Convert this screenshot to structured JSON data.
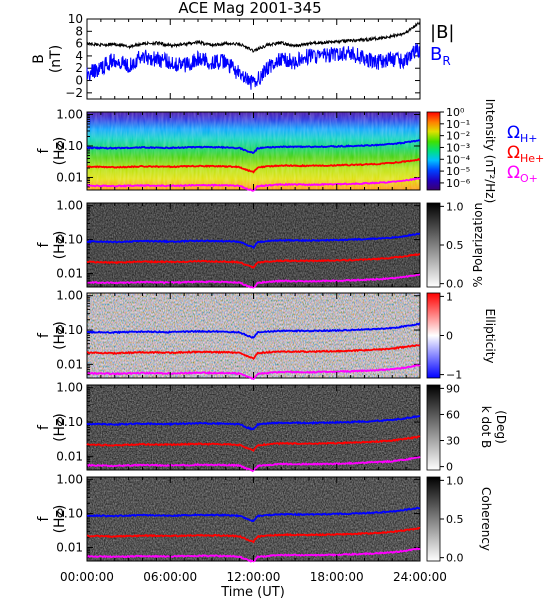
{
  "title": "ACE Mag 2001-345",
  "x_axis": {
    "label": "Time (UT)",
    "tick_labels": [
      "00:00:00",
      "06:00:00",
      "12:00:00",
      "18:00:00",
      "24:00:00"
    ],
    "tick_hours": [
      0,
      6,
      12,
      18,
      24
    ]
  },
  "chart_data": [
    {
      "type": "line",
      "panel": "magnetic-field",
      "xlabel": "",
      "ylabel": "B",
      "yunit": "(nT)",
      "ylim": [
        -3,
        10
      ],
      "ytick_labels": [
        "−2",
        "0",
        "2",
        "4",
        "6",
        "8",
        "10"
      ],
      "ytick_values": [
        -2,
        0,
        2,
        4,
        6,
        8,
        10
      ],
      "series": [
        {
          "name": "|B|",
          "color": "#000000",
          "x": [
            0,
            1,
            2,
            3,
            4,
            5,
            6,
            7,
            8,
            9,
            10,
            11,
            11.5,
            12,
            13,
            14,
            15,
            16,
            17,
            18,
            19,
            20,
            21,
            22,
            23,
            23.5,
            24
          ],
          "values": [
            6.0,
            5.8,
            5.9,
            5.5,
            6.0,
            6.1,
            5.7,
            5.9,
            6.2,
            5.8,
            6.0,
            5.9,
            5.4,
            4.8,
            5.8,
            6.1,
            5.6,
            6.0,
            6.2,
            6.3,
            6.5,
            6.6,
            6.9,
            7.2,
            7.8,
            8.6,
            9.5
          ]
        },
        {
          "name": "B_R",
          "color": "#0000ff",
          "x": [
            0,
            1,
            2,
            3,
            4,
            5,
            6,
            7,
            8,
            9,
            10,
            11,
            11.5,
            12,
            13,
            14,
            15,
            16,
            17,
            18,
            19,
            20,
            21,
            22,
            23,
            23.5,
            24
          ],
          "values": [
            1.0,
            2.0,
            3.5,
            2.5,
            4.0,
            3.5,
            3.0,
            2.5,
            3.5,
            3.0,
            3.0,
            1.0,
            0.0,
            -0.5,
            2.0,
            3.5,
            3.0,
            4.0,
            4.0,
            4.2,
            4.5,
            3.5,
            3.0,
            3.5,
            3.0,
            5.0,
            4.5
          ]
        }
      ]
    },
    {
      "type": "heatmap",
      "panel": "power-spectrum",
      "ylabel": "f",
      "yunit": "(Hz)",
      "ytick_labels": [
        "1.00",
        "0.10",
        "0.01"
      ],
      "ytick_values": [
        1.0,
        0.1,
        0.01
      ],
      "yscale": "log",
      "ylim": [
        0.004,
        1.2
      ],
      "colorbar": {
        "label": "Intensity (nT²/Hz)",
        "scale": "log",
        "tick_labels": [
          "10⁰",
          "10⁻¹",
          "10⁻²",
          "10⁻³",
          "10⁻⁴",
          "10⁻⁵",
          "10⁻⁶"
        ],
        "tick_values": [
          0,
          -1,
          -2,
          -3,
          -4,
          -5,
          -6
        ],
        "colormap": "rainbow"
      },
      "legend": [
        "Ω_H+",
        "Ω_He+",
        "Ω_O+"
      ]
    },
    {
      "type": "heatmap",
      "panel": "polarization",
      "ylabel": "f",
      "yunit": "(Hz)",
      "ytick_labels": [
        "1.00",
        "0.10",
        "0.01"
      ],
      "yscale": "log",
      "colorbar": {
        "label": "% Polarization",
        "tick_labels": [
          "1.0",
          "0.5",
          "0.0"
        ],
        "tick_values": [
          1.0,
          0.5,
          0.0
        ],
        "colormap": "gray"
      }
    },
    {
      "type": "heatmap",
      "panel": "ellipticity",
      "ylabel": "f",
      "yunit": "(Hz)",
      "ytick_labels": [
        "1.00",
        "0.10",
        "0.01"
      ],
      "yscale": "log",
      "colorbar": {
        "label": "Ellipticity",
        "tick_labels": [
          "1",
          "0",
          "−1"
        ],
        "tick_values": [
          1,
          0,
          -1
        ],
        "colormap": "blue-white-red"
      }
    },
    {
      "type": "heatmap",
      "panel": "wave-normal-angle",
      "ylabel": "f",
      "yunit": "(Hz)",
      "ytick_labels": [
        "1.00",
        "0.10",
        "0.01"
      ],
      "yscale": "log",
      "colorbar": {
        "label": "k dot B",
        "unit": "(Deg)",
        "tick_labels": [
          "90",
          "60",
          "30",
          "0"
        ],
        "tick_values": [
          90,
          60,
          30,
          0
        ],
        "colormap": "gray"
      }
    },
    {
      "type": "heatmap",
      "panel": "coherency",
      "ylabel": "f",
      "yunit": "(Hz)",
      "ytick_labels": [
        "1.00",
        "0.10",
        "0.01"
      ],
      "yscale": "log",
      "colorbar": {
        "label": "Coherency",
        "tick_labels": [
          "1.0",
          "0.5",
          "0.0"
        ],
        "tick_values": [
          1.0,
          0.5,
          0.0
        ],
        "colormap": "gray"
      }
    }
  ],
  "gyrofrequency_lines": [
    {
      "name": "Ω_H+",
      "label_main": "Ω",
      "label_sub": "H+",
      "color": "#0000ff",
      "x": [
        0,
        2,
        4,
        6,
        8,
        10,
        11,
        11.5,
        12,
        12.3,
        13,
        14,
        16,
        18,
        19,
        20,
        21,
        22,
        23,
        24
      ],
      "values": [
        0.088,
        0.085,
        0.09,
        0.087,
        0.092,
        0.09,
        0.086,
        0.07,
        0.06,
        0.085,
        0.09,
        0.095,
        0.094,
        0.097,
        0.1,
        0.103,
        0.108,
        0.115,
        0.13,
        0.15
      ]
    },
    {
      "name": "Ω_He+",
      "label_main": "Ω",
      "label_sub": "He+",
      "color": "#ff0000",
      "x": [
        0,
        2,
        4,
        6,
        8,
        10,
        11,
        11.5,
        12,
        12.3,
        13,
        14,
        16,
        18,
        19,
        20,
        21,
        22,
        23,
        24
      ],
      "values": [
        0.022,
        0.021,
        0.0225,
        0.0218,
        0.023,
        0.0225,
        0.0215,
        0.0175,
        0.015,
        0.021,
        0.0225,
        0.0238,
        0.0235,
        0.0243,
        0.025,
        0.0258,
        0.027,
        0.029,
        0.0325,
        0.0375
      ]
    },
    {
      "name": "Ω_O+",
      "label_main": "Ω",
      "label_sub": "O+",
      "color": "#ff00ff",
      "x": [
        0,
        2,
        4,
        6,
        8,
        10,
        11,
        11.5,
        12,
        12.3,
        13,
        14,
        16,
        18,
        19,
        20,
        21,
        22,
        23,
        24
      ],
      "values": [
        0.0055,
        0.0053,
        0.0056,
        0.0054,
        0.0057,
        0.0056,
        0.0054,
        0.0044,
        0.0038,
        0.0053,
        0.0056,
        0.006,
        0.0059,
        0.0061,
        0.0063,
        0.0065,
        0.0068,
        0.0072,
        0.0081,
        0.0094
      ]
    }
  ],
  "field_legend": {
    "b_total": "|B|",
    "b_radial_main": "B",
    "b_radial_sub": "R"
  },
  "colors": {
    "axis": "#000000",
    "b_total": "#000000",
    "b_radial": "#0000ff",
    "h_line": "#0000ff",
    "he_line": "#ff0000",
    "o_line": "#ff00ff"
  }
}
